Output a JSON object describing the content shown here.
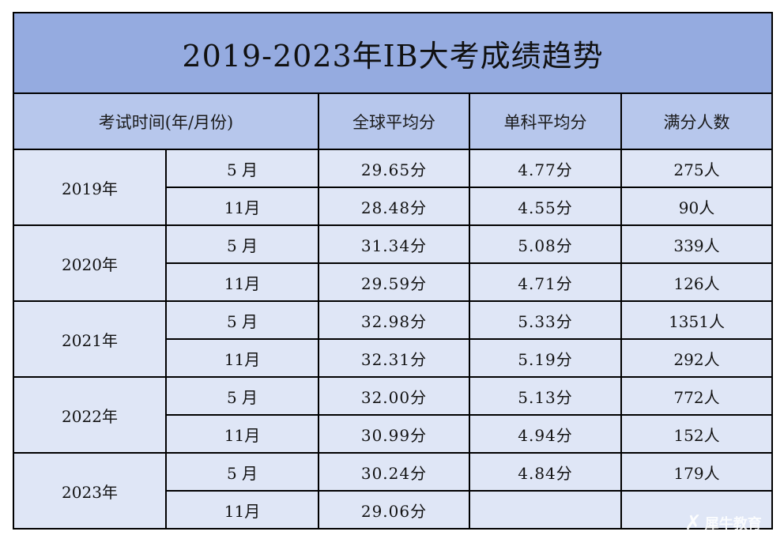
{
  "title": "2019-2023年IB大考成绩趋势",
  "headers": {
    "time": "考试时间(年/月份)",
    "global_avg": "全球平均分",
    "subject_avg": "单科平均分",
    "full_score": "满分人数"
  },
  "rows": [
    {
      "year": "2019年",
      "sessions": [
        {
          "month": "5 月",
          "global": "29.65分",
          "subject": "4.77分",
          "full": "275人"
        },
        {
          "month": "11月",
          "global": "28.48分",
          "subject": "4.55分",
          "full": "90人"
        }
      ]
    },
    {
      "year": "2020年",
      "sessions": [
        {
          "month": "5 月",
          "global": "31.34分",
          "subject": "5.08分",
          "full": "339人"
        },
        {
          "month": "11月",
          "global": "29.59分",
          "subject": "4.71分",
          "full": "126人"
        }
      ]
    },
    {
      "year": "2021年",
      "sessions": [
        {
          "month": "5 月",
          "global": "32.98分",
          "subject": "5.33分",
          "full": "1351人"
        },
        {
          "month": "11月",
          "global": "32.31分",
          "subject": "5.19分",
          "full": "292人"
        }
      ]
    },
    {
      "year": "2022年",
      "sessions": [
        {
          "month": "5 月",
          "global": "32.00分",
          "subject": "5.13分",
          "full": "772人"
        },
        {
          "month": "11月",
          "global": "30.99分",
          "subject": "4.94分",
          "full": "152人"
        }
      ]
    },
    {
      "year": "2023年",
      "sessions": [
        {
          "month": "5 月",
          "global": "30.24分",
          "subject": "4.84分",
          "full": "179人"
        },
        {
          "month": "11月",
          "global": "29.06分",
          "subject": "",
          "full": ""
        }
      ]
    }
  ],
  "watermark": {
    "text": "犀牛教育",
    "icon": "rhino-logo-icon"
  },
  "colors": {
    "title_bg": "#95abe0",
    "header_bg": "#b7c7ec",
    "body_bg": "#dfe6f6",
    "border": "#000000"
  }
}
